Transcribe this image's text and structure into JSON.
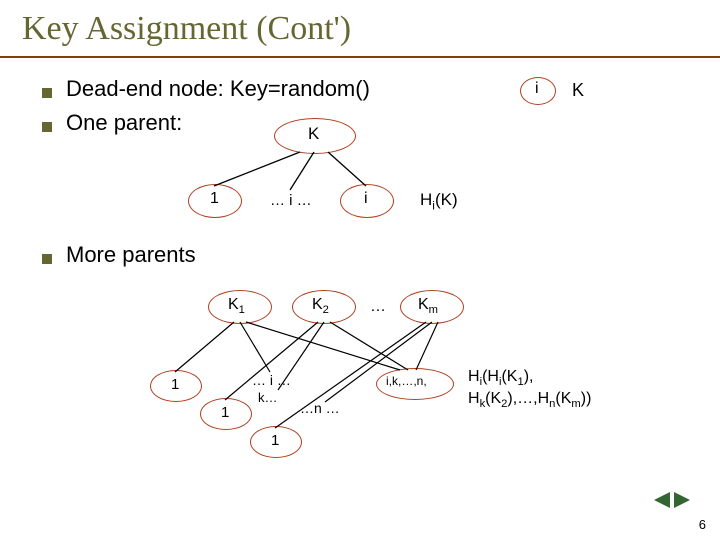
{
  "title": "Key Assignment (Cont')",
  "bullets": {
    "b1": "Dead-end node: Key=random()",
    "b2": "One parent:",
    "b3": "More parents"
  },
  "diagram1": {
    "node_i_label": "i",
    "right_K": "K",
    "parent_K": "K",
    "child_1": "1",
    "child_mid": "… i …",
    "child_i": "i",
    "formula": "H<sub class=\"sub\">i</sub>(K)"
  },
  "diagram2": {
    "K1": "K<sub class=\"sub\">1</sub>",
    "K2": "K<sub class=\"sub\">2</sub>",
    "dots": "…",
    "Km": "K<sub class=\"sub\">m</sub>",
    "c1": "1",
    "c2": "… i …",
    "c2b": "k…",
    "c3": "1",
    "c4": "…n …",
    "c5": "1",
    "tag": "i,k,…,n,",
    "formula_a": "H<sub class=\"sub\">i</sub>(H<sub class=\"sub\">i</sub>(K<sub class=\"sub\">1</sub>),",
    "formula_b": "H<sub class=\"sub\">k</sub>(K<sub class=\"sub\">2</sub>),…,H<sub class=\"sub\">n</sub>(K<sub class=\"sub\">m</sub>))"
  },
  "colors": {
    "ellipse_stroke": "#b04020",
    "line_stroke": "#000000",
    "title_color": "#666633",
    "nav_tri": "#336633"
  },
  "slide_number": "6"
}
